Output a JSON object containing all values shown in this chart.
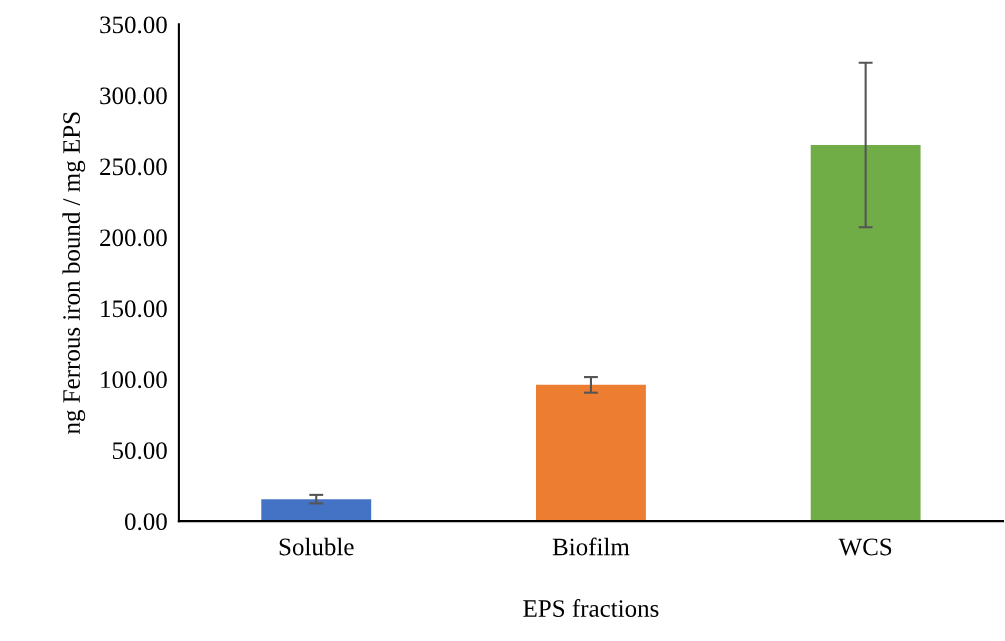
{
  "chart_data": {
    "type": "bar",
    "xlabel": "EPS fractions",
    "ylabel": "ng Ferrous iron bound / mg EPS",
    "categories": [
      "Soluble",
      "Biofilm",
      "WCS"
    ],
    "values": [
      15.5,
      96,
      265
    ],
    "colors": [
      "#4472c4",
      "#ed7d31",
      "#70ad47"
    ],
    "errors": [
      3,
      5.5,
      58
    ],
    "ylim": [
      0,
      350
    ],
    "yticks": [
      {
        "value": 0,
        "label": "0.00"
      },
      {
        "value": 50,
        "label": "50.00"
      },
      {
        "value": 100,
        "label": "100.00"
      },
      {
        "value": 150,
        "label": "150.00"
      },
      {
        "value": 200,
        "label": "200.00"
      },
      {
        "value": 250,
        "label": "250.00"
      },
      {
        "value": 300,
        "label": "300.00"
      },
      {
        "value": 350,
        "label": "350.00"
      }
    ],
    "grid": false
  }
}
